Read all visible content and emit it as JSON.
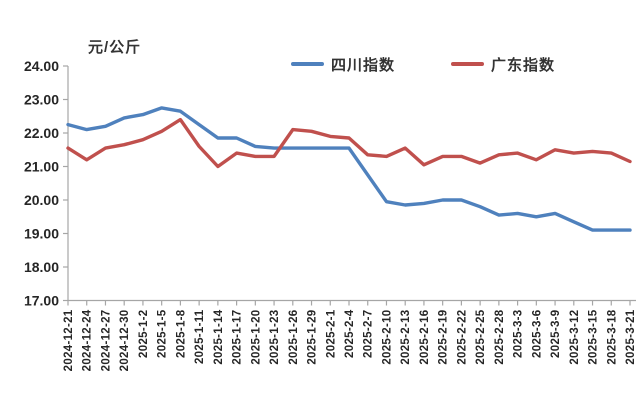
{
  "chart": {
    "unit_label": "元/公斤",
    "legend": [
      {
        "label": "四川指数",
        "color": "#4f81bd"
      },
      {
        "label": "广东指数",
        "color": "#c0504d"
      }
    ]
  },
  "chart_data": {
    "type": "line",
    "title": "",
    "xlabel": "",
    "ylabel": "元/公斤",
    "ylim": [
      17,
      24
    ],
    "ytick_step": 1,
    "y_tick_labels": [
      "24.00",
      "23.00",
      "22.00",
      "21.00",
      "20.00",
      "19.00",
      "18.00",
      "17.00"
    ],
    "grid": false,
    "legend_position": "top",
    "markers": false,
    "categories": [
      "2024-12-21",
      "2024-12-24",
      "2024-12-27",
      "2024-12-30",
      "2025-1-2",
      "2025-1-5",
      "2025-1-8",
      "2025-1-11",
      "2025-1-14",
      "2025-1-17",
      "2025-1-20",
      "2025-1-23",
      "2025-1-26",
      "2025-1-29",
      "2025-2-1",
      "2025-2-4",
      "2025-2-7",
      "2025-2-10",
      "2025-2-13",
      "2025-2-16",
      "2025-2-19",
      "2025-2-22",
      "2025-2-25",
      "2025-2-28",
      "2025-3-3",
      "2025-3-6",
      "2025-3-9",
      "2025-3-12",
      "2025-3-15",
      "2025-3-18",
      "2025-3-21"
    ],
    "series": [
      {
        "name": "四川指数",
        "color": "#4f81bd",
        "values": [
          22.25,
          22.1,
          22.2,
          22.45,
          22.55,
          22.75,
          22.65,
          22.25,
          21.85,
          21.85,
          21.6,
          21.55,
          21.55,
          21.55,
          21.55,
          21.55,
          20.75,
          19.95,
          19.85,
          19.9,
          20.0,
          20.0,
          19.8,
          19.55,
          19.6,
          19.5,
          19.6,
          19.35,
          19.1,
          19.1,
          19.1
        ]
      },
      {
        "name": "广东指数",
        "color": "#c0504d",
        "values": [
          21.55,
          21.2,
          21.55,
          21.65,
          21.8,
          22.05,
          22.4,
          21.6,
          21.0,
          21.4,
          21.3,
          21.3,
          22.1,
          22.05,
          21.9,
          21.85,
          21.35,
          21.3,
          21.55,
          21.05,
          21.3,
          21.3,
          21.1,
          21.35,
          21.4,
          21.2,
          21.5,
          21.4,
          21.45,
          21.4,
          21.15
        ]
      }
    ]
  }
}
